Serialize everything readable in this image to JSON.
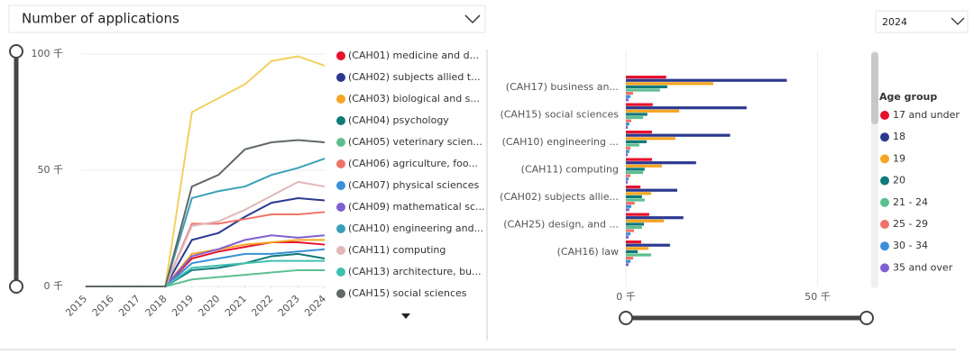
{
  "controls": {
    "measure": "Number of applications",
    "year": "2024"
  },
  "chart_data": [
    {
      "type": "line",
      "x": [
        2015,
        2016,
        2017,
        2018,
        2019,
        2020,
        2021,
        2022,
        2023,
        2024
      ],
      "xlim": [
        2015,
        2024
      ],
      "xticks": [
        2015,
        2016,
        2017,
        2018,
        2019,
        2020,
        2021,
        2022,
        2023,
        2024
      ],
      "ylim": [
        0,
        100
      ],
      "yticks": [
        {
          "value": 0,
          "label": "0 千"
        },
        {
          "value": 50,
          "label": "50 千"
        },
        {
          "value": 100,
          "label": "100 千"
        }
      ],
      "grid": true,
      "legend": "right",
      "series": [
        {
          "color": "#f2d160",
          "values": [
            0,
            0,
            0,
            0,
            75,
            81,
            87,
            97,
            99,
            95
          ]
        },
        {
          "name": "(CAH01) medicine and d...",
          "color": "#e8112d",
          "values": [
            0,
            0,
            0,
            0,
            12,
            15,
            17,
            19,
            19,
            18
          ]
        },
        {
          "name": "(CAH02) subjects allied t...",
          "color": "#2b3990",
          "values": [
            0,
            0,
            0,
            0,
            20,
            23,
            30,
            36,
            38,
            37
          ]
        },
        {
          "name": "(CAH03) biological and s...",
          "color": "#f5a623",
          "values": [
            0,
            0,
            0,
            0,
            14,
            16,
            18,
            19,
            20,
            20
          ]
        },
        {
          "name": "(CAH04) psychology",
          "color": "#117a7a",
          "values": [
            0,
            0,
            0,
            0,
            7,
            8,
            10,
            13,
            14,
            12
          ]
        },
        {
          "name": "(CAH05) veterinary scien...",
          "color": "#5dbf8f",
          "values": [
            0,
            0,
            0,
            0,
            3,
            4,
            5,
            6,
            7,
            7
          ]
        },
        {
          "name": "(CAH06) agriculture, foo...",
          "color": "#f0736a",
          "values": [
            0,
            0,
            0,
            0,
            27,
            27,
            29,
            31,
            31,
            32
          ]
        },
        {
          "name": "(CAH07) physical sciences",
          "color": "#3a8fd8",
          "values": [
            0,
            0,
            0,
            0,
            10,
            12,
            14,
            14,
            15,
            16
          ]
        },
        {
          "name": "(CAH09) mathematical sc...",
          "color": "#8060d0",
          "values": [
            0,
            0,
            0,
            0,
            13,
            16,
            20,
            22,
            21,
            22
          ]
        },
        {
          "name": "(CAH10) engineering and...",
          "color": "#3aa0b8",
          "values": [
            0,
            0,
            0,
            0,
            38,
            41,
            43,
            48,
            51,
            55
          ]
        },
        {
          "name": "(CAH11) computing",
          "color": "#e0b8b8",
          "values": [
            0,
            0,
            0,
            0,
            26,
            28,
            33,
            39,
            45,
            43
          ]
        },
        {
          "name": "(CAH13) architecture, bu...",
          "color": "#40c0b0",
          "values": [
            0,
            0,
            0,
            0,
            8,
            9,
            10,
            11,
            11,
            11
          ]
        },
        {
          "name": "(CAH15) social sciences",
          "color": "#606868",
          "values": [
            0,
            0,
            0,
            0,
            43,
            48,
            59,
            62,
            63,
            62
          ]
        }
      ]
    },
    {
      "type": "hbar",
      "categories": [
        "(CAH17) business an...",
        "(CAH15) social sciences",
        "(CAH10) engineering ...",
        "(CAH11) computing",
        "(CAH02) subjects allie...",
        "(CAH25) design, and ...",
        "(CAH16) law"
      ],
      "xlim": [
        0,
        64
      ],
      "xticks": [
        {
          "value": 0,
          "label": "0 千"
        },
        {
          "value": 50,
          "label": "50 千"
        }
      ],
      "grid": true,
      "legend": "right",
      "legend_title": "Age group",
      "series": [
        {
          "name": "17 and under",
          "color": "#e8112d",
          "values": [
            10.5,
            7,
            6.8,
            6.8,
            3.8,
            6.1,
            4
          ]
        },
        {
          "name": "18",
          "color": "#2b3990",
          "values": [
            42,
            31.5,
            27.2,
            18.3,
            13.4,
            15,
            11.5
          ]
        },
        {
          "name": "19",
          "color": "#f5a623",
          "values": [
            22.8,
            13.9,
            12.9,
            9.4,
            6.6,
            9.9,
            5.9
          ]
        },
        {
          "name": "20",
          "color": "#117a7a",
          "values": [
            10.8,
            5.6,
            5.4,
            4.9,
            4.2,
            4.7,
            3.1
          ]
        },
        {
          "name": "21 - 24",
          "color": "#5dbf8f",
          "values": [
            8.9,
            4.5,
            3.5,
            4.5,
            4.9,
            4.2,
            6.6
          ]
        },
        {
          "name": "25 - 29",
          "color": "#f0736a",
          "values": [
            1.9,
            1.4,
            1.2,
            1.2,
            2.3,
            2.1,
            1.9
          ]
        },
        {
          "name": "30 - 34",
          "color": "#3a8fd8",
          "values": [
            1.2,
            0.9,
            0.9,
            0.7,
            1.4,
            1.2,
            1.2
          ]
        },
        {
          "name": "35 and over",
          "color": "#8060d0",
          "values": [
            0.7,
            0.5,
            0.5,
            0.5,
            0.9,
            0.7,
            0.7
          ]
        }
      ]
    }
  ]
}
